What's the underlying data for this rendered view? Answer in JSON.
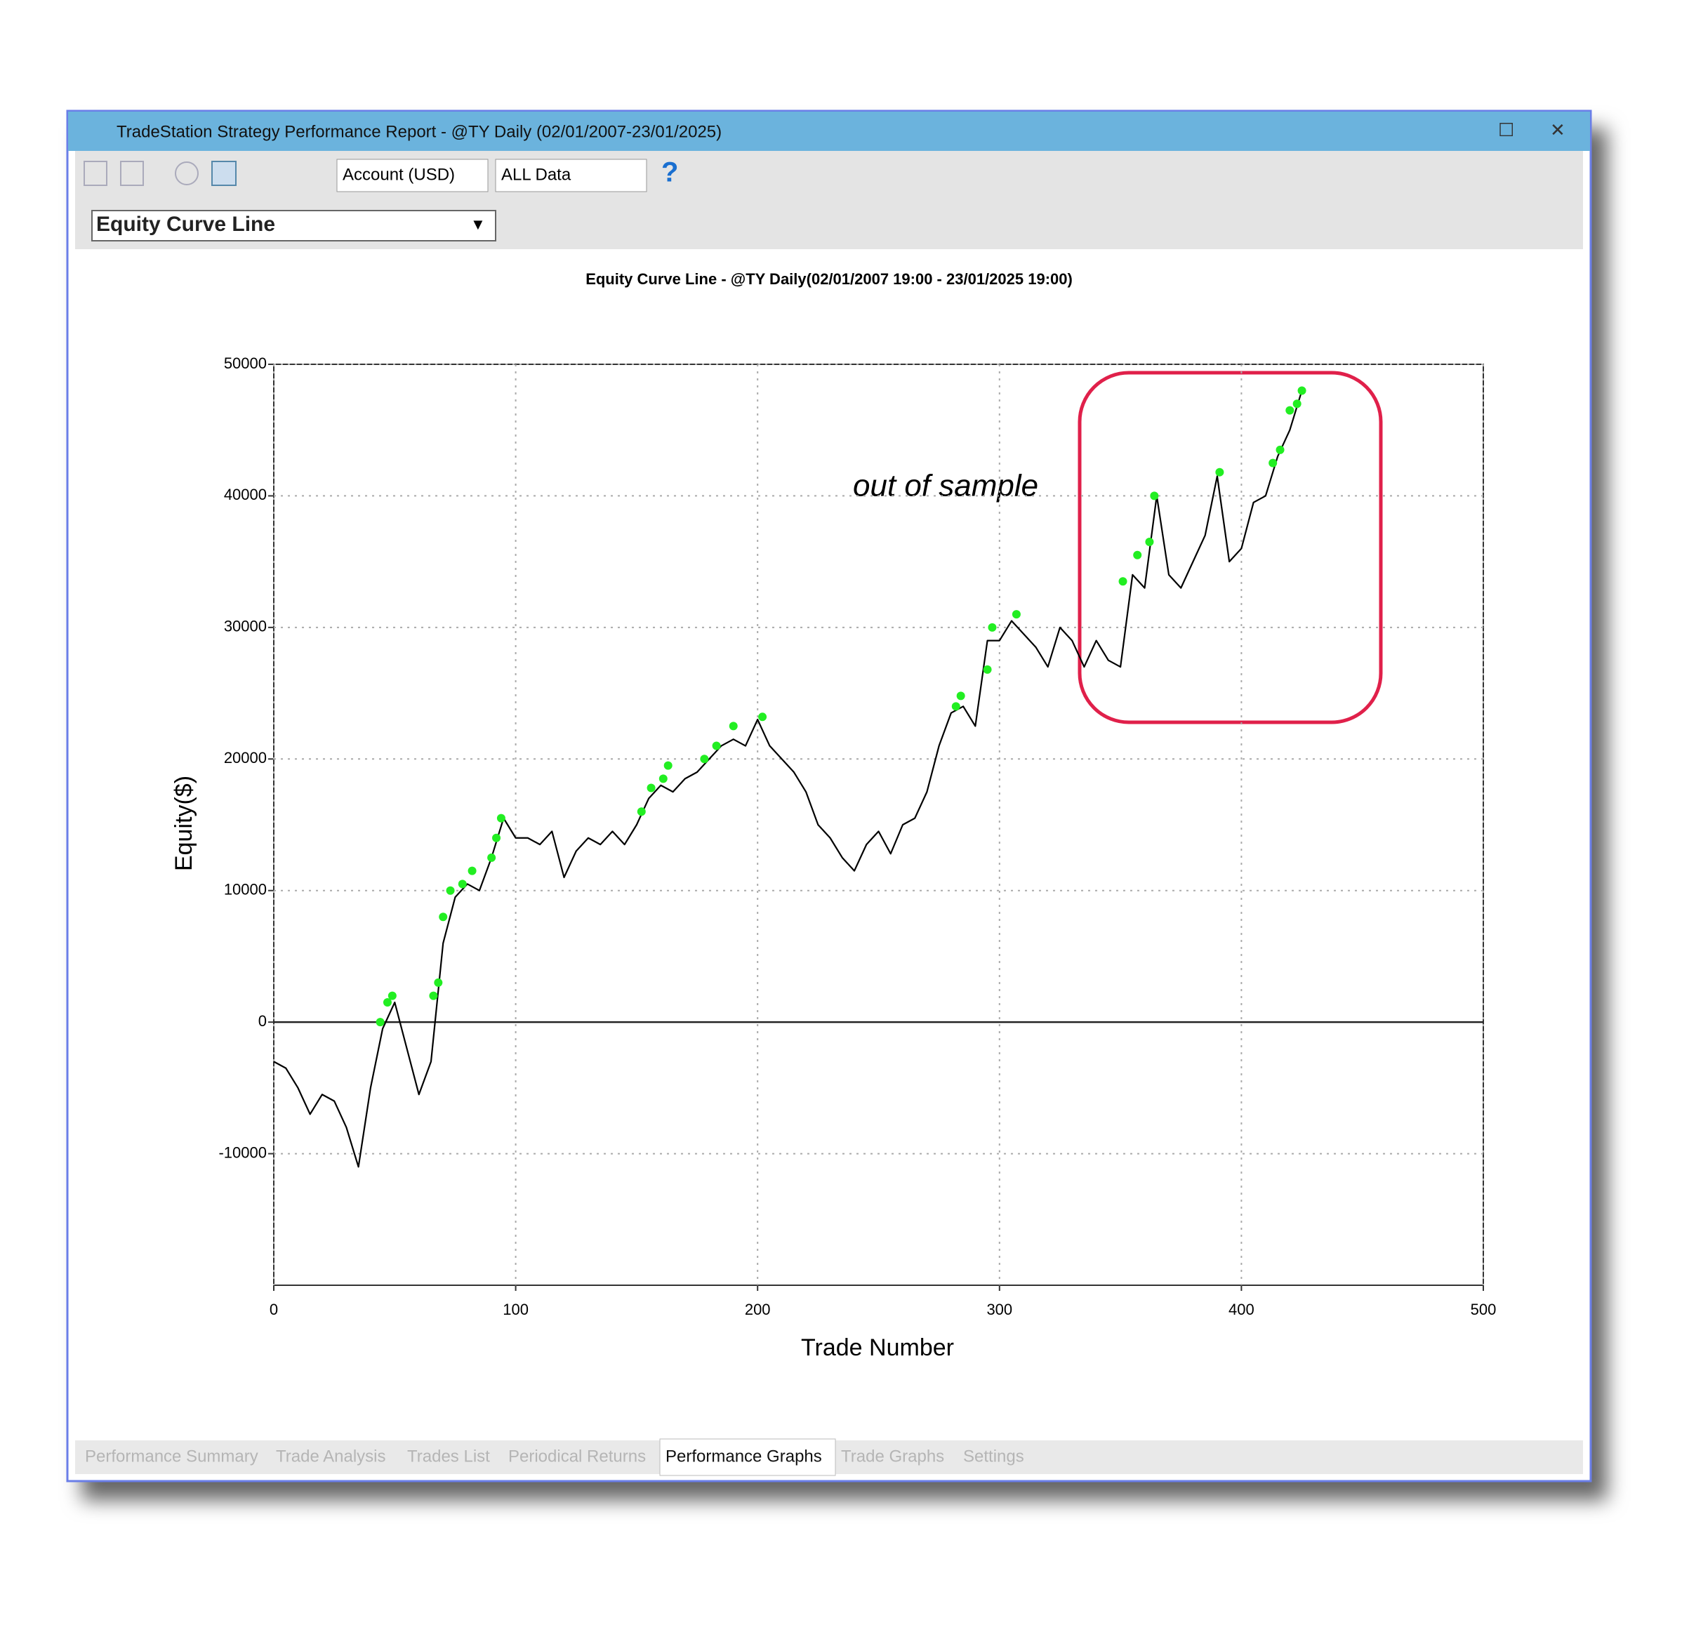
{
  "window": {
    "title": "TradeStation Strategy Performance Report - @TY Daily (02/01/2007-23/01/2025)"
  },
  "toolbar": {
    "account": "Account (USD)",
    "range": "ALL Data",
    "help": "?"
  },
  "graph_selector": "Equity Curve Line",
  "tabs": [
    "Performance Summary",
    "Trade Analysis",
    "Trades List",
    "Periodical Returns",
    "Performance Graphs",
    "Trade Graphs",
    "Settings"
  ],
  "active_tab": "Performance Graphs",
  "chart_data": {
    "type": "line",
    "title": "Equity Curve Line - @TY Daily(02/01/2007 19:00 - 23/01/2025 19:00)",
    "xlabel": "Trade Number",
    "ylabel": "Equity($)",
    "annotation": "out of sample",
    "xlim": [
      0,
      500
    ],
    "xticks": [
      0,
      100,
      200,
      300,
      400,
      500
    ],
    "ylim": [
      -20000,
      50000
    ],
    "yticks": [
      -10000,
      0,
      10000,
      20000,
      30000,
      40000,
      50000
    ],
    "grid": true,
    "series": [
      {
        "color": "#000000",
        "marker": false,
        "x": [
          0,
          5,
          10,
          15,
          20,
          25,
          30,
          35,
          40,
          45,
          50,
          55,
          60,
          65,
          70,
          75,
          80,
          85,
          90,
          95,
          100,
          105,
          110,
          115,
          120,
          125,
          130,
          135,
          140,
          145,
          150,
          155,
          160,
          165,
          170,
          175,
          180,
          185,
          190,
          195,
          200,
          205,
          210,
          215,
          220,
          225,
          230,
          235,
          240,
          245,
          250,
          255,
          260,
          265,
          270,
          275,
          280,
          285,
          290,
          295,
          300,
          305,
          310,
          315,
          320,
          325,
          330,
          335,
          340,
          345,
          350,
          355,
          360,
          365,
          370,
          375,
          380,
          385,
          390,
          395,
          400,
          405,
          410,
          415,
          420,
          425
        ],
        "values": [
          -3000,
          -3500,
          -5000,
          -7000,
          -5500,
          -6000,
          -8000,
          -11000,
          -5000,
          -500,
          1500,
          -2000,
          -5500,
          -3000,
          6000,
          9500,
          10500,
          10000,
          12500,
          15500,
          14000,
          14000,
          13500,
          14500,
          11000,
          13000,
          14000,
          13500,
          14500,
          13500,
          15000,
          17000,
          18000,
          17500,
          18500,
          19000,
          20000,
          21000,
          21500,
          21000,
          23000,
          21000,
          20000,
          19000,
          17500,
          15000,
          14000,
          12500,
          11500,
          13500,
          14500,
          12800,
          15000,
          15500,
          17500,
          21000,
          23500,
          24000,
          22500,
          29000,
          29000,
          30500,
          29500,
          28500,
          27000,
          30000,
          29000,
          27000,
          29000,
          27500,
          27000,
          34000,
          33000,
          40000,
          34000,
          33000,
          35000,
          37000,
          41500,
          35000,
          36000,
          39500,
          40000,
          43000,
          45000,
          48000
        ]
      },
      {
        "color": "#22ee22",
        "marker": true,
        "x": [
          44,
          47,
          49,
          66,
          68,
          70,
          73,
          78,
          82,
          90,
          92,
          94,
          152,
          156,
          161,
          163,
          178,
          183,
          190,
          202,
          282,
          284,
          295,
          297,
          307,
          351,
          357,
          362,
          364,
          391,
          413,
          416,
          420,
          423,
          425
        ],
        "values": [
          0,
          1500,
          2000,
          2000,
          3000,
          8000,
          10000,
          10500,
          11500,
          12500,
          14000,
          15500,
          16000,
          17800,
          18500,
          19500,
          20000,
          21000,
          22500,
          23200,
          24000,
          24800,
          26800,
          30000,
          31000,
          33500,
          35500,
          36500,
          40000,
          41800,
          42500,
          43500,
          46500,
          47000,
          48000
        ]
      }
    ]
  }
}
